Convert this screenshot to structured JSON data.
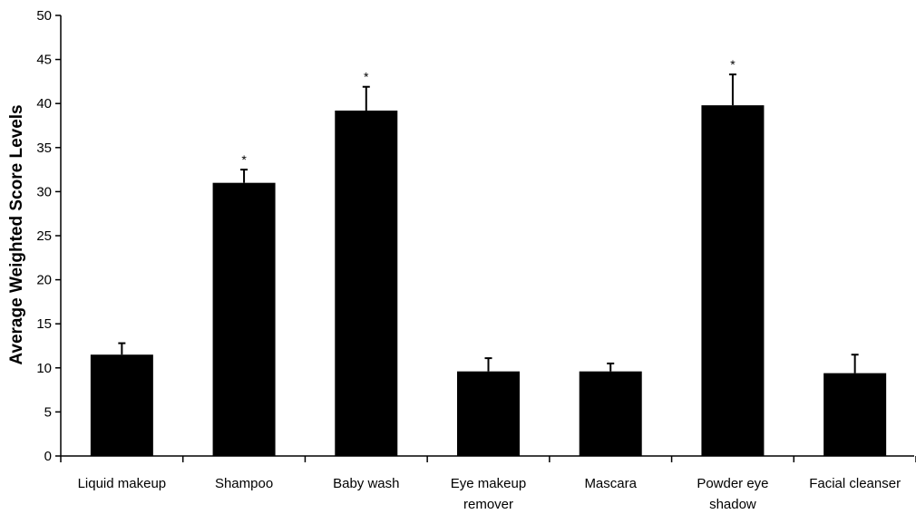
{
  "chart_data": {
    "type": "bar",
    "title": "",
    "xlabel": "",
    "ylabel": "Average Weighted Score Levels",
    "ylim": [
      0,
      50
    ],
    "yticks": [
      0,
      5,
      10,
      15,
      20,
      25,
      30,
      35,
      40,
      45,
      50
    ],
    "categories": [
      [
        "Liquid makeup"
      ],
      [
        "Shampoo"
      ],
      [
        "Baby wash"
      ],
      [
        "Eye makeup",
        "remover"
      ],
      [
        "Mascara"
      ],
      [
        "Powder eye",
        "shadow"
      ],
      [
        "Facial cleanser"
      ]
    ],
    "values": [
      11.5,
      31.0,
      39.2,
      9.6,
      9.6,
      39.8,
      9.4
    ],
    "error_upper": [
      1.3,
      1.5,
      2.7,
      1.5,
      0.9,
      3.5,
      2.1
    ],
    "significant": [
      false,
      true,
      true,
      false,
      false,
      true,
      false
    ],
    "significance_marker": "*",
    "grid": false,
    "colors": {
      "bar": "#000000",
      "axis": "#000000",
      "background": "#ffffff"
    }
  }
}
